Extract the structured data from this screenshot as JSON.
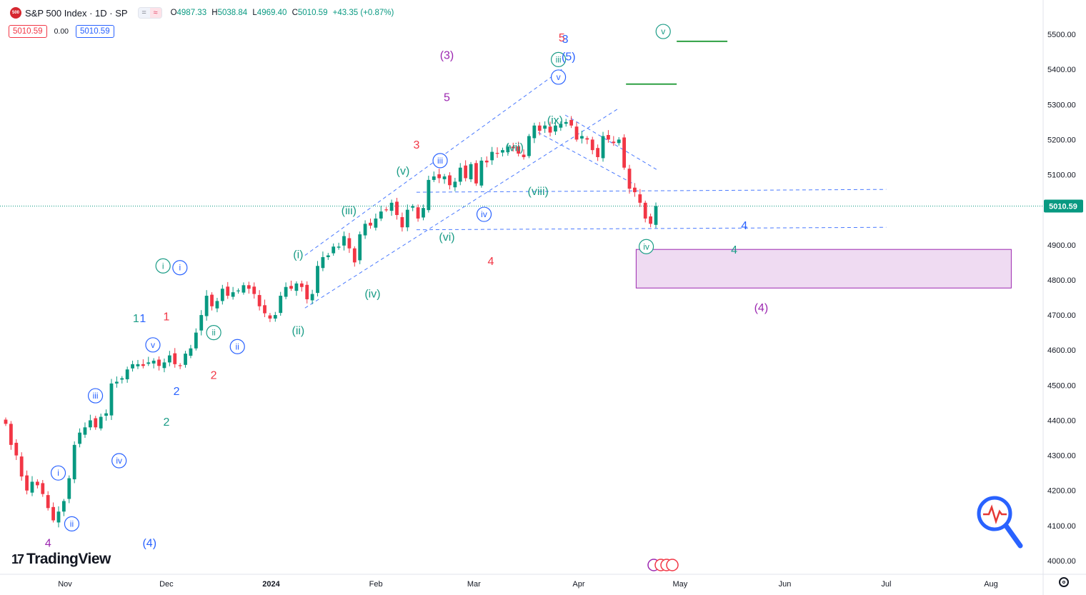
{
  "header": {
    "symbol_badge": "500",
    "title": "S&P 500 Index · 1D · SP",
    "ohlc": [
      {
        "k": "O",
        "v": "4987.33"
      },
      {
        "k": "H",
        "v": "5038.84"
      },
      {
        "k": "L",
        "v": "4969.40"
      },
      {
        "k": "C",
        "v": "5010.59"
      },
      {
        "k": "",
        "v": "+43.35 (+0.87%)"
      }
    ],
    "bid": "5010.59",
    "spread": "0.00",
    "ask": "5010.59"
  },
  "branding": {
    "logo_text": "TradingView",
    "logo_mark": "17"
  },
  "colors": {
    "up": "#089981",
    "down": "#f23645",
    "grid": "#f0f3fa",
    "blue": "#2962ff",
    "teal": "#1a9c86",
    "red": "#f23645",
    "purple": "#9c27b0",
    "zone_fill": "#e1bee7",
    "target": "#2ea043"
  },
  "chart_data": {
    "type": "candlestick",
    "title": "S&P 500 Index · 1D · SP",
    "xlabel": "",
    "ylabel": "",
    "ylim": [
      3975,
      5545
    ],
    "y_ticks": [
      "5500.00",
      "5400.00",
      "5300.00",
      "5200.00",
      "5100.00",
      "5000.00",
      "4900.00",
      "4800.00",
      "4700.00",
      "4600.00",
      "4500.00",
      "4400.00",
      "4300.00",
      "4200.00",
      "4100.00",
      "4000.00"
    ],
    "x_ticks": [
      "Nov",
      "Dec",
      "2024",
      "Feb",
      "Mar",
      "Apr",
      "May",
      "Jun",
      "Jul",
      "Aug"
    ],
    "x_tick_dates": [
      "2023-11-01",
      "2023-12-01",
      "2024-01-01",
      "2024-02-01",
      "2024-03-01",
      "2024-04-01",
      "2024-05-01",
      "2024-06-01",
      "2024-07-01",
      "2024-08-01"
    ],
    "last_price": 5010.59,
    "last_price_label": "5010.59",
    "closes": [
      4390,
      4330,
      4300,
      4240,
      4200,
      4225,
      4215,
      4190,
      4150,
      4115,
      4140,
      4170,
      4235,
      4330,
      4365,
      4380,
      4400,
      4380,
      4410,
      4420,
      4505,
      4510,
      4520,
      4545,
      4560,
      4560,
      4555,
      4565,
      4570,
      4555,
      4565,
      4585,
      4560,
      4555,
      4590,
      4605,
      4650,
      4700,
      4755,
      4725,
      4740,
      4775,
      4755,
      4765,
      4770,
      4785,
      4775,
      4760,
      4725,
      4705,
      4690,
      4700,
      4755,
      4780,
      4775,
      4790,
      4780,
      4745,
      4760,
      4840,
      4865,
      4870,
      4895,
      4895,
      4925,
      4890,
      4850,
      4930,
      4960,
      4955,
      4975,
      4995,
      5000,
      5020,
      4985,
      4950,
      5000,
      5010,
      4975,
      5005,
      5085,
      5095,
      5090,
      5095,
      5070,
      5080,
      5120,
      5090,
      5130,
      5075,
      5140,
      5135,
      5165,
      5160,
      5170,
      5180,
      5175,
      5160,
      5150,
      5210,
      5240,
      5225,
      5240,
      5220,
      5240,
      5245,
      5250,
      5240,
      5200,
      5210,
      5200,
      5170,
      5150,
      5210,
      5200,
      5190,
      5200,
      5120,
      5060,
      5050,
      5020,
      4975,
      4960,
      5010.59
    ],
    "annotations": [
      {
        "t": "5",
        "c": "red",
        "d": "2024-03-27",
        "y": 5490
      },
      {
        "t": "3",
        "c": "blue",
        "d": "2024-03-28",
        "y": 5486
      },
      {
        "t": "(3)",
        "c": "purple",
        "d": "2024-02-22",
        "y": 5440
      },
      {
        "t": "iii",
        "c": "teal",
        "d": "2024-03-26",
        "y": 5428,
        "circ": true
      },
      {
        "t": "(5)",
        "c": "blue",
        "d": "2024-03-29",
        "y": 5436
      },
      {
        "t": "v",
        "c": "teal",
        "d": "2024-04-26",
        "y": 5508,
        "circ": true
      },
      {
        "t": "v",
        "c": "blue",
        "d": "2024-03-26",
        "y": 5378,
        "circ": true
      },
      {
        "t": "5",
        "c": "purple",
        "d": "2024-02-22",
        "y": 5320
      },
      {
        "t": "(ix)",
        "c": "teal",
        "d": "2024-03-25",
        "y": 5255
      },
      {
        "t": "3",
        "c": "red",
        "d": "2024-02-13",
        "y": 5185
      },
      {
        "t": "(vii)",
        "c": "teal",
        "d": "2024-03-13",
        "y": 5177
      },
      {
        "t": "iii",
        "c": "blue",
        "d": "2024-02-20",
        "y": 5140,
        "circ": true
      },
      {
        "t": "(v)",
        "c": "teal",
        "d": "2024-02-09",
        "y": 5110
      },
      {
        "t": "(viii)",
        "c": "teal",
        "d": "2024-03-20",
        "y": 5052
      },
      {
        "t": "(iii)",
        "c": "teal",
        "d": "2024-01-24",
        "y": 4997
      },
      {
        "t": "iv",
        "c": "blue",
        "d": "2024-03-04",
        "y": 4987,
        "circ": true
      },
      {
        "t": "4",
        "c": "blue",
        "d": "2024-05-20",
        "y": 4955
      },
      {
        "t": "(vi)",
        "c": "teal",
        "d": "2024-02-22",
        "y": 4922
      },
      {
        "t": "iv",
        "c": "teal",
        "d": "2024-04-21",
        "y": 4895,
        "circ": true
      },
      {
        "t": "4",
        "c": "teal",
        "d": "2024-05-17",
        "y": 4885
      },
      {
        "t": "(i)",
        "c": "teal",
        "d": "2024-01-09",
        "y": 4872
      },
      {
        "t": "4",
        "c": "red",
        "d": "2024-03-06",
        "y": 4853
      },
      {
        "t": "i",
        "c": "teal",
        "d": "2023-11-30",
        "y": 4840,
        "circ": true
      },
      {
        "t": "i",
        "c": "blue",
        "d": "2023-12-05",
        "y": 4835,
        "circ": true
      },
      {
        "t": "(iv)",
        "c": "teal",
        "d": "2024-01-31",
        "y": 4760
      },
      {
        "t": "(4)",
        "c": "purple",
        "d": "2024-05-25",
        "y": 4720
      },
      {
        "t": "1",
        "c": "teal",
        "d": "2023-11-22",
        "y": 4690
      },
      {
        "t": "1",
        "c": "blue",
        "d": "2023-11-24",
        "y": 4690
      },
      {
        "t": "1",
        "c": "red",
        "d": "2023-12-01",
        "y": 4695
      },
      {
        "t": "ii",
        "c": "teal",
        "d": "2023-12-15",
        "y": 4650,
        "circ": true
      },
      {
        "t": "(ii)",
        "c": "teal",
        "d": "2024-01-09",
        "y": 4655
      },
      {
        "t": "ii",
        "c": "blue",
        "d": "2023-12-22",
        "y": 4610,
        "circ": true
      },
      {
        "t": "v",
        "c": "blue",
        "d": "2023-11-27",
        "y": 4615,
        "circ": true
      },
      {
        "t": "2",
        "c": "red",
        "d": "2023-12-15",
        "y": 4528
      },
      {
        "t": "2",
        "c": "blue",
        "d": "2023-12-04",
        "y": 4482
      },
      {
        "t": "iii",
        "c": "blue",
        "d": "2023-11-10",
        "y": 4470,
        "circ": true
      },
      {
        "t": "2",
        "c": "teal",
        "d": "2023-12-01",
        "y": 4395
      },
      {
        "t": "iv",
        "c": "blue",
        "d": "2023-11-17",
        "y": 4285,
        "circ": true
      },
      {
        "t": "i",
        "c": "blue",
        "d": "2023-10-30",
        "y": 4250,
        "circ": true
      },
      {
        "t": "ii",
        "c": "blue",
        "d": "2023-11-03",
        "y": 4105,
        "circ": true
      },
      {
        "t": "(4)",
        "c": "blue",
        "d": "2023-11-26",
        "y": 4050
      },
      {
        "t": "4",
        "c": "purple",
        "d": "2023-10-27",
        "y": 4050
      }
    ],
    "zone": {
      "d0": "2024-04-18",
      "d1": "2024-08-07",
      "y_top": 4887,
      "y_bottom": 4777
    },
    "targets": [
      {
        "d0": "2024-04-15",
        "d1": "2024-04-30",
        "y": 5358
      },
      {
        "d0": "2024-04-30",
        "d1": "2024-05-15",
        "y": 5480
      }
    ],
    "dashed_lines": [
      {
        "d0": "2024-01-11",
        "d1": "2024-03-27",
        "y0": 4870,
        "y1": 5400
      },
      {
        "d0": "2024-01-11",
        "d1": "2024-04-13",
        "y0": 4720,
        "y1": 5290
      },
      {
        "d0": "2024-02-13",
        "d1": "2024-07-01",
        "y0": 5050,
        "y1": 5058
      },
      {
        "d0": "2024-02-13",
        "d1": "2024-07-01",
        "y0": 4943,
        "y1": 4950
      },
      {
        "d0": "2024-03-28",
        "d1": "2024-04-24",
        "y0": 5270,
        "y1": 5115
      },
      {
        "d0": "2024-03-20",
        "d1": "2024-04-17",
        "y0": 5220,
        "y1": 5075
      }
    ]
  }
}
